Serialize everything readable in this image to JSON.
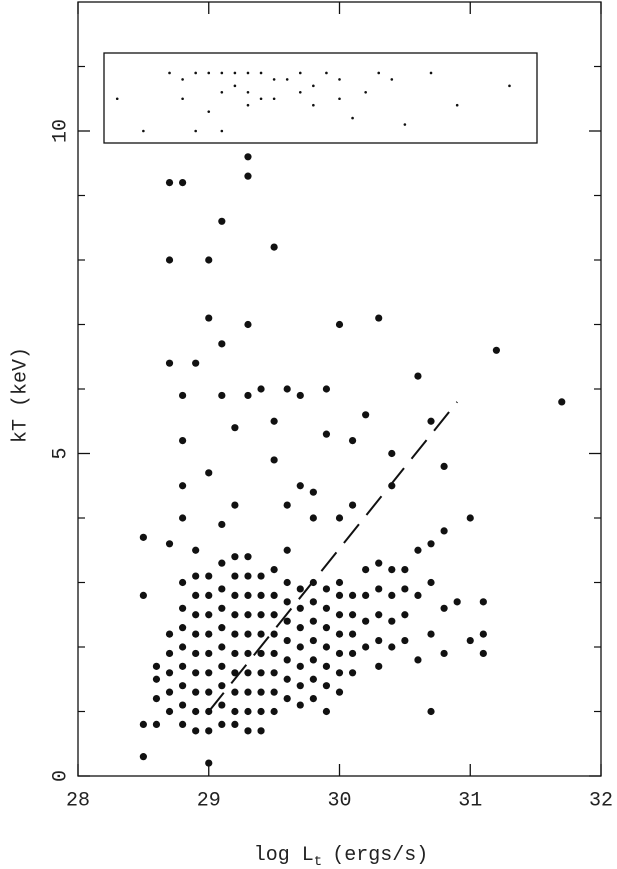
{
  "chart_data": {
    "type": "scatter",
    "xlabel": [
      "log L",
      "t",
      "(ergs/s)"
    ],
    "ylabel": "kT (keV)",
    "xlim": [
      28,
      32
    ],
    "ylim": [
      0,
      12
    ],
    "xticks": [
      28,
      29,
      30,
      31,
      32
    ],
    "yticks": [
      0,
      5,
      10
    ],
    "yminor": [
      1,
      2,
      3,
      4,
      6,
      7,
      8,
      9,
      11
    ],
    "series": [
      {
        "type": "scatter",
        "marker": "dot",
        "color": "#111111",
        "x": [
          28.5,
          28.5,
          28.5,
          28.5,
          28.6,
          28.6,
          28.6,
          28.6,
          28.7,
          28.7,
          28.7,
          28.7,
          28.7,
          28.7,
          28.7,
          28.7,
          28.7,
          28.8,
          28.8,
          28.8,
          28.8,
          28.8,
          28.8,
          28.8,
          28.8,
          28.8,
          28.8,
          28.8,
          28.8,
          28.8,
          28.9,
          28.9,
          28.9,
          28.9,
          28.9,
          28.9,
          28.9,
          28.9,
          28.9,
          28.9,
          28.9,
          29.0,
          29.0,
          29.0,
          29.0,
          29.0,
          29.0,
          29.0,
          29.0,
          29.0,
          29.0,
          29.0,
          29.0,
          29.0,
          29.1,
          29.1,
          29.1,
          29.1,
          29.1,
          29.1,
          29.1,
          29.1,
          29.1,
          29.1,
          29.1,
          29.1,
          29.1,
          29.2,
          29.2,
          29.2,
          29.2,
          29.2,
          29.2,
          29.2,
          29.2,
          29.2,
          29.2,
          29.2,
          29.2,
          29.3,
          29.3,
          29.3,
          29.3,
          29.3,
          29.3,
          29.3,
          29.3,
          29.3,
          29.3,
          29.3,
          29.3,
          29.3,
          29.3,
          29.4,
          29.4,
          29.4,
          29.4,
          29.4,
          29.4,
          29.4,
          29.4,
          29.4,
          29.4,
          29.5,
          29.5,
          29.5,
          29.5,
          29.5,
          29.5,
          29.5,
          29.5,
          29.5,
          29.5,
          29.5,
          29.6,
          29.6,
          29.6,
          29.6,
          29.6,
          29.6,
          29.6,
          29.6,
          29.6,
          29.6,
          29.7,
          29.7,
          29.7,
          29.7,
          29.7,
          29.7,
          29.7,
          29.7,
          29.7,
          29.8,
          29.8,
          29.8,
          29.8,
          29.8,
          29.8,
          29.8,
          29.8,
          29.8,
          29.9,
          29.9,
          29.9,
          29.9,
          29.9,
          29.9,
          29.9,
          29.9,
          29.9,
          30.0,
          30.0,
          30.0,
          30.0,
          30.0,
          30.0,
          30.0,
          30.0,
          30.0,
          30.1,
          30.1,
          30.1,
          30.1,
          30.1,
          30.1,
          30.1,
          30.2,
          30.2,
          30.2,
          30.2,
          30.2,
          30.3,
          30.3,
          30.3,
          30.3,
          30.3,
          30.3,
          30.4,
          30.4,
          30.4,
          30.4,
          30.4,
          30.4,
          30.5,
          30.5,
          30.5,
          30.5,
          30.6,
          30.6,
          30.6,
          30.6,
          30.7,
          30.7,
          30.7,
          30.7,
          30.7,
          30.8,
          30.8,
          30.8,
          30.8,
          30.9,
          31.0,
          31.0,
          31.1,
          31.1,
          31.1,
          31.2,
          31.7
        ],
        "values": [
          0.3,
          0.8,
          2.8,
          3.7,
          0.8,
          1.2,
          1.5,
          1.7,
          1.0,
          1.3,
          1.6,
          1.9,
          2.2,
          3.6,
          6.4,
          8.0,
          9.2,
          0.8,
          1.1,
          1.4,
          1.7,
          2.0,
          2.3,
          2.6,
          3.0,
          4.0,
          4.5,
          5.2,
          5.9,
          9.2,
          0.7,
          1.0,
          1.3,
          1.6,
          1.9,
          2.2,
          2.5,
          2.8,
          3.1,
          3.5,
          6.4,
          0.2,
          0.7,
          1.0,
          1.3,
          1.6,
          1.9,
          2.2,
          2.5,
          2.8,
          3.1,
          4.7,
          7.1,
          8.0,
          0.8,
          1.1,
          1.4,
          1.7,
          2.0,
          2.3,
          2.6,
          2.9,
          3.3,
          3.9,
          5.9,
          6.7,
          8.6,
          0.8,
          1.0,
          1.3,
          1.6,
          1.9,
          2.2,
          2.5,
          2.8,
          3.1,
          3.4,
          4.2,
          5.4,
          0.7,
          1.0,
          1.3,
          1.6,
          1.9,
          2.2,
          2.5,
          2.8,
          3.1,
          3.4,
          5.9,
          7.0,
          9.3,
          9.6,
          0.7,
          1.0,
          1.3,
          1.6,
          1.9,
          2.2,
          2.5,
          2.8,
          3.1,
          6.0,
          1.0,
          1.3,
          1.6,
          1.9,
          2.2,
          2.5,
          2.8,
          3.2,
          4.9,
          5.5,
          8.2,
          1.2,
          1.5,
          1.8,
          2.1,
          2.4,
          2.7,
          3.0,
          3.5,
          4.2,
          6.0,
          1.1,
          1.4,
          1.7,
          2.0,
          2.3,
          2.6,
          2.9,
          4.5,
          5.9,
          1.2,
          1.5,
          1.8,
          2.1,
          2.4,
          2.7,
          3.0,
          4.0,
          4.4,
          1.0,
          1.4,
          1.7,
          2.0,
          2.3,
          2.6,
          2.9,
          5.3,
          6.0,
          1.3,
          1.6,
          1.9,
          2.2,
          2.5,
          2.8,
          3.0,
          4.0,
          7.0,
          1.6,
          1.9,
          2.2,
          2.5,
          2.8,
          4.2,
          5.2,
          2.0,
          2.4,
          2.8,
          3.2,
          5.6,
          1.7,
          2.1,
          2.5,
          2.9,
          3.3,
          7.1,
          2.0,
          2.4,
          2.8,
          3.2,
          4.5,
          5.0,
          2.1,
          2.5,
          2.9,
          3.2,
          1.8,
          2.8,
          3.5,
          6.2,
          1.0,
          2.2,
          3.0,
          3.6,
          5.5,
          1.9,
          2.6,
          3.8,
          4.8,
          2.7,
          2.1,
          4.0,
          1.9,
          2.2,
          2.7,
          6.6,
          5.8
        ]
      },
      {
        "type": "scatter",
        "marker": "small",
        "color": "#111111",
        "x": [
          28.3,
          28.5,
          28.7,
          28.8,
          28.8,
          28.9,
          28.9,
          29.0,
          29.0,
          29.1,
          29.1,
          29.1,
          29.2,
          29.2,
          29.3,
          29.3,
          29.3,
          29.4,
          29.4,
          29.5,
          29.5,
          29.6,
          29.7,
          29.7,
          29.8,
          29.8,
          29.9,
          30.0,
          30.0,
          30.1,
          30.2,
          30.3,
          30.4,
          30.5,
          30.7,
          30.9,
          31.3
        ],
        "values": [
          10.5,
          10.0,
          10.9,
          10.8,
          10.5,
          10.9,
          10.0,
          10.9,
          10.3,
          10.9,
          10.6,
          10.0,
          10.9,
          10.7,
          10.9,
          10.6,
          10.4,
          10.9,
          10.5,
          10.8,
          10.5,
          10.8,
          10.9,
          10.6,
          10.7,
          10.4,
          10.9,
          10.8,
          10.5,
          10.2,
          10.6,
          10.9,
          10.8,
          10.1,
          10.9,
          10.4,
          10.7
        ]
      },
      {
        "type": "line",
        "style": "dashed",
        "color": "#111111",
        "x": [
          29.0,
          30.9
        ],
        "values": [
          1.0,
          5.8
        ]
      }
    ]
  }
}
